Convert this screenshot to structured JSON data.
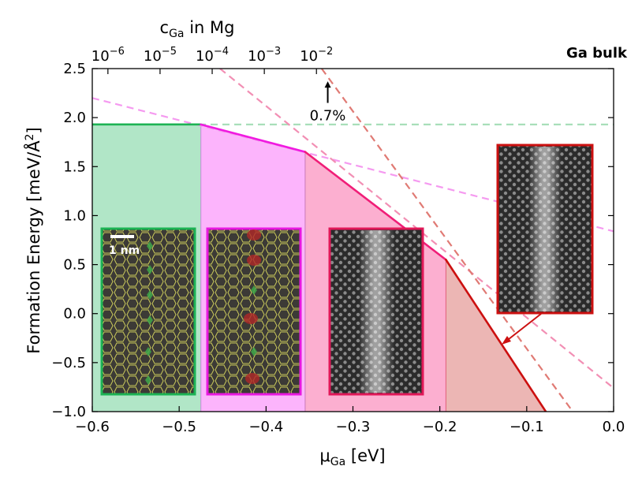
{
  "chart_data": {
    "type": "line",
    "xlabel": "μGa [eV]",
    "xlabel_main": "μ",
    "xlabel_sub": "Ga",
    "xlabel_unit": " [eV]",
    "ylabel": "Formation Energy [meV/Å2]",
    "ylabel_main": "Formation Energy [meV/Å",
    "ylabel_sup": "2",
    "ylabel_end": "]",
    "top_label_main": "c",
    "top_label_sub": "Ga",
    "top_label_end": " in Mg",
    "xlim": [
      -0.6,
      0.0
    ],
    "ylim": [
      -1.0,
      2.5
    ],
    "x_ticks": [
      {
        "value": -0.6,
        "label": "−0.6"
      },
      {
        "value": -0.5,
        "label": "−0.5"
      },
      {
        "value": -0.4,
        "label": "−0.4"
      },
      {
        "value": -0.3,
        "label": "−0.3"
      },
      {
        "value": -0.2,
        "label": "−0.2"
      },
      {
        "value": -0.1,
        "label": "−0.1"
      },
      {
        "value": 0.0,
        "label": "0.0"
      }
    ],
    "y_ticks": [
      {
        "value": -1.0,
        "label": "−1.0"
      },
      {
        "value": -0.5,
        "label": "−0.5"
      },
      {
        "value": 0.0,
        "label": "0.0"
      },
      {
        "value": 0.5,
        "label": "0.5"
      },
      {
        "value": 1.0,
        "label": "1.0"
      },
      {
        "value": 1.5,
        "label": "1.5"
      },
      {
        "value": 2.0,
        "label": "2.0"
      },
      {
        "value": 2.5,
        "label": "2.5"
      }
    ],
    "top_ticks": [
      {
        "value": -0.582,
        "base": "10",
        "exp": "−6"
      },
      {
        "value": -0.522,
        "base": "10",
        "exp": "−5"
      },
      {
        "value": -0.462,
        "base": "10",
        "exp": "−4"
      },
      {
        "value": -0.402,
        "base": "10",
        "exp": "−3"
      },
      {
        "value": -0.342,
        "base": "10",
        "exp": "−2"
      }
    ],
    "top_right_label": "Ga bulk",
    "annotation": {
      "text": "0.7%",
      "arrow_x": -0.329,
      "arrow_y_top": 2.37,
      "arrow_y_bottom": 2.15
    },
    "dashed_lines": [
      {
        "name": "green",
        "color": "#a8dfb9",
        "points": [
          [
            -0.6,
            1.93
          ],
          [
            0.0,
            1.93
          ]
        ]
      },
      {
        "name": "magenta",
        "color": "#f59af0",
        "points": [
          [
            -0.6,
            2.2
          ],
          [
            0.0,
            0.84
          ]
        ]
      },
      {
        "name": "pink",
        "color": "#f28fb4",
        "points": [
          [
            -0.453,
            2.5
          ],
          [
            0.0,
            -0.76
          ]
        ]
      },
      {
        "name": "red",
        "color": "#e07a74",
        "points": [
          [
            -0.336,
            2.5
          ],
          [
            -0.047,
            -1.0
          ]
        ]
      }
    ],
    "hull": {
      "points": [
        [
          -0.6,
          1.93
        ],
        [
          -0.475,
          1.93
        ],
        [
          -0.355,
          1.65
        ],
        [
          -0.193,
          0.55
        ],
        [
          -0.078,
          -1.0
        ]
      ],
      "colors": [
        "#1db354",
        "#f01ae0",
        "#f01e78",
        "#cc1010"
      ]
    },
    "regions": [
      {
        "name": "green",
        "x": [
          -0.6,
          -0.475
        ],
        "color": "#b1e6c7"
      },
      {
        "name": "magenta",
        "x": [
          -0.475,
          -0.355
        ],
        "color": "#fcb4fc"
      },
      {
        "name": "pink",
        "x": [
          -0.355,
          -0.193
        ],
        "color": "#fcafd0"
      },
      {
        "name": "red",
        "x": [
          -0.193,
          -0.078
        ],
        "color": "#ecb6b4"
      }
    ],
    "boundaries": [
      -0.475,
      -0.355,
      -0.193
    ],
    "scale_bar_label": "1 nm"
  }
}
